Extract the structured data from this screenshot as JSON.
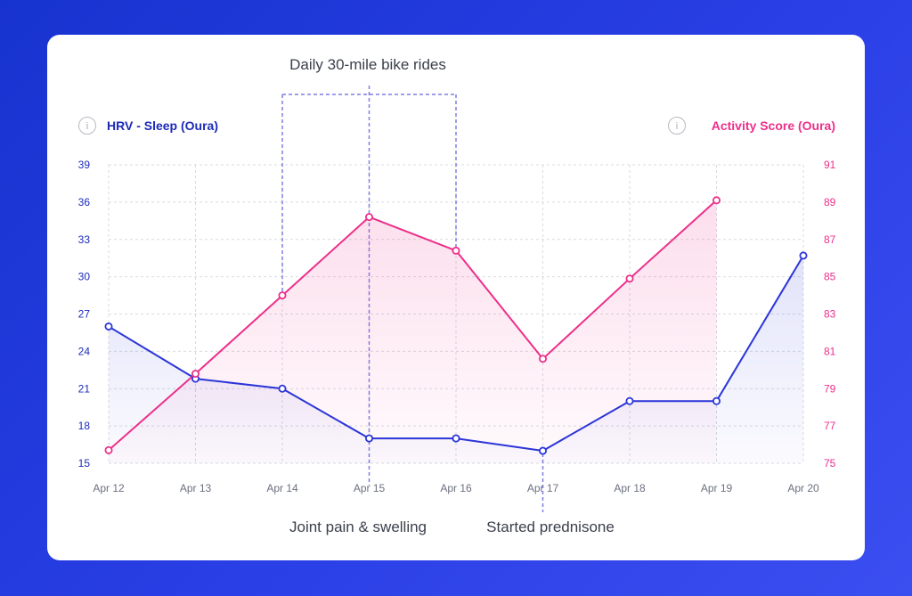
{
  "chart_data": {
    "type": "line",
    "categories": [
      "Apr 12",
      "Apr 13",
      "Apr 14",
      "Apr 15",
      "Apr 16",
      "Apr 17",
      "Apr 18",
      "Apr 19",
      "Apr 20"
    ],
    "series": [
      {
        "name": "HRV - Sleep (Oura)",
        "axis": "left",
        "color": "#2b35d8",
        "values": [
          26,
          21.8,
          21,
          17,
          17,
          16,
          20,
          20,
          31.7
        ]
      },
      {
        "name": "Activity Score (Oura)",
        "axis": "right",
        "color": "#ec2f8a",
        "values": [
          75.7,
          79.8,
          84,
          88.2,
          86.4,
          80.6,
          84.9,
          null,
          null
        ],
        "extra_point": {
          "index": 7,
          "value": 89.1
        }
      }
    ],
    "y_left": {
      "ylim": [
        15,
        39
      ],
      "ticks": [
        15,
        18,
        21,
        24,
        27,
        30,
        33,
        36,
        39
      ]
    },
    "y_right": {
      "ylim": [
        75,
        91
      ],
      "ticks": [
        75,
        77,
        79,
        81,
        83,
        85,
        87,
        89,
        91
      ]
    },
    "grid": true,
    "annotations": [
      {
        "text": "Daily 30-mile bike rides",
        "type": "range",
        "from": "Apr 14",
        "to": "Apr 16"
      },
      {
        "text": "Joint pain & swelling",
        "type": "marker",
        "at": "Apr 15"
      },
      {
        "text": "Started prednisone",
        "type": "marker",
        "at": "Apr 17"
      }
    ],
    "info_icon": "i"
  }
}
